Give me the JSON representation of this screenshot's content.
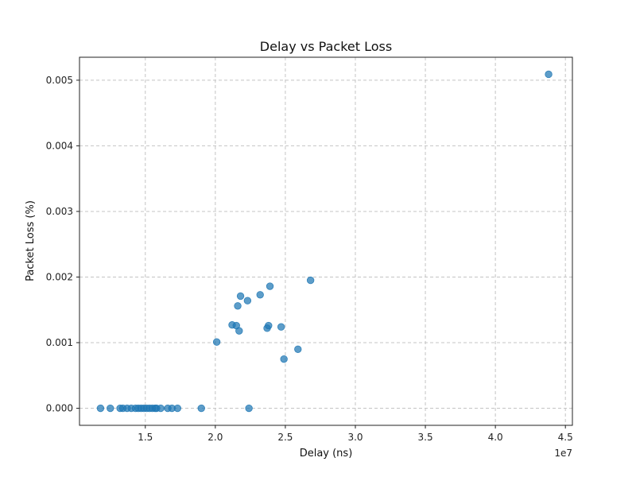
{
  "chart_data": {
    "type": "scatter",
    "title": "Delay vs Packet Loss",
    "xlabel": "Delay (ns)",
    "ylabel": "Packet Loss (%)",
    "x_offset_label": "1e7",
    "xlim": [
      1.03,
      4.55
    ],
    "ylim": [
      -0.00026,
      0.00535
    ],
    "x_ticks": [
      1.5,
      2.0,
      2.5,
      3.0,
      3.5,
      4.0,
      4.5
    ],
    "x_tick_labels": [
      "1.5",
      "2.0",
      "2.5",
      "3.0",
      "3.5",
      "4.0",
      "4.5"
    ],
    "y_ticks": [
      0.0,
      0.001,
      0.002,
      0.003,
      0.004,
      0.005
    ],
    "y_tick_labels": [
      "0.000",
      "0.001",
      "0.002",
      "0.003",
      "0.004",
      "0.005"
    ],
    "grid": true,
    "marker_color": "#1f77b4",
    "points": [
      {
        "x": 1.18,
        "y": 0.0
      },
      {
        "x": 1.25,
        "y": 0.0
      },
      {
        "x": 1.32,
        "y": 0.0
      },
      {
        "x": 1.34,
        "y": 0.0
      },
      {
        "x": 1.37,
        "y": 0.0
      },
      {
        "x": 1.4,
        "y": 0.0
      },
      {
        "x": 1.43,
        "y": 0.0
      },
      {
        "x": 1.45,
        "y": 0.0
      },
      {
        "x": 1.47,
        "y": 0.0
      },
      {
        "x": 1.49,
        "y": 0.0
      },
      {
        "x": 1.51,
        "y": 0.0
      },
      {
        "x": 1.53,
        "y": 0.0
      },
      {
        "x": 1.55,
        "y": 0.0
      },
      {
        "x": 1.57,
        "y": 0.0
      },
      {
        "x": 1.58,
        "y": 0.0
      },
      {
        "x": 1.61,
        "y": 0.0
      },
      {
        "x": 1.66,
        "y": 0.0
      },
      {
        "x": 1.69,
        "y": 0.0
      },
      {
        "x": 1.73,
        "y": 0.0
      },
      {
        "x": 1.9,
        "y": 0.0
      },
      {
        "x": 2.24,
        "y": 0.0
      },
      {
        "x": 2.01,
        "y": 0.00101
      },
      {
        "x": 2.12,
        "y": 0.00127
      },
      {
        "x": 2.15,
        "y": 0.00126
      },
      {
        "x": 2.16,
        "y": 0.00156
      },
      {
        "x": 2.17,
        "y": 0.00118
      },
      {
        "x": 2.18,
        "y": 0.00171
      },
      {
        "x": 2.23,
        "y": 0.00164
      },
      {
        "x": 2.32,
        "y": 0.00173
      },
      {
        "x": 2.37,
        "y": 0.00122
      },
      {
        "x": 2.38,
        "y": 0.00126
      },
      {
        "x": 2.39,
        "y": 0.00186
      },
      {
        "x": 2.47,
        "y": 0.00124
      },
      {
        "x": 2.49,
        "y": 0.00075
      },
      {
        "x": 2.59,
        "y": 0.0009
      },
      {
        "x": 2.68,
        "y": 0.00195
      },
      {
        "x": 4.38,
        "y": 0.00509
      }
    ]
  }
}
